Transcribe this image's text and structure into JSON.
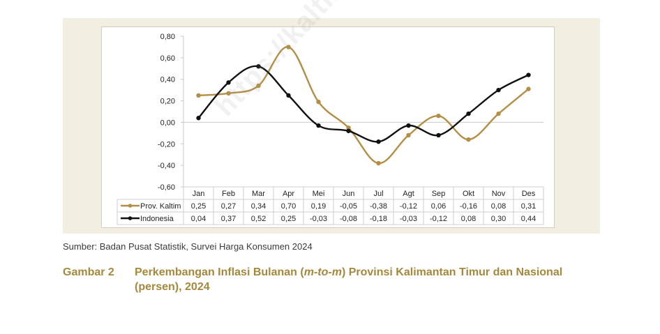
{
  "chart_data": {
    "type": "line",
    "categories": [
      "Jan",
      "Feb",
      "Mar",
      "Apr",
      "Mei",
      "Jun",
      "Jul",
      "Agt",
      "Sep",
      "Okt",
      "Nov",
      "Des"
    ],
    "series": [
      {
        "name": "Prov. Kaltim",
        "values": [
          0.25,
          0.27,
          0.34,
          0.7,
          0.19,
          -0.05,
          -0.38,
          -0.12,
          0.06,
          -0.16,
          0.08,
          0.31
        ],
        "labels": [
          "0,25",
          "0,27",
          "0,34",
          "0,70",
          "0,19",
          "-0,05",
          "-0,38",
          "-0,12",
          "0,06",
          "-0,16",
          "0,08",
          "0,31"
        ],
        "color": "#b38f45"
      },
      {
        "name": "Indonesia",
        "values": [
          0.04,
          0.37,
          0.52,
          0.25,
          -0.03,
          -0.08,
          -0.18,
          -0.03,
          -0.12,
          0.08,
          0.3,
          0.44
        ],
        "labels": [
          "0,04",
          "0,37",
          "0,52",
          "0,25",
          "-0,03",
          "-0,08",
          "-0,18",
          "-0,03",
          "-0,12",
          "0,08",
          "0,30",
          "0,44"
        ],
        "color": "#111111"
      }
    ],
    "ylim": [
      -0.6,
      0.8
    ],
    "yticks": [
      0.8,
      0.6,
      0.4,
      0.2,
      0.0,
      -0.2,
      -0.4,
      -0.6
    ],
    "ytick_labels": [
      "0,80",
      "0,60",
      "0,40",
      "0,20",
      "0,00",
      "-0,20",
      "-0,40",
      "-0,60"
    ],
    "grid": false,
    "legend": "data-table-below",
    "title": "",
    "xlabel": "",
    "ylabel": ""
  },
  "watermark": "https://kaltim.bps.go.id",
  "source": "Sumber: Badan Pusat Statistik, Survei Harga Konsumen 2024",
  "caption": {
    "number": "Gambar 2",
    "title_before": "Perkembangan Inflasi Bulanan (",
    "title_italic": "m-to-m",
    "title_after": ") Provinsi Kalimantan Timur dan Nasional (persen), 2024"
  }
}
